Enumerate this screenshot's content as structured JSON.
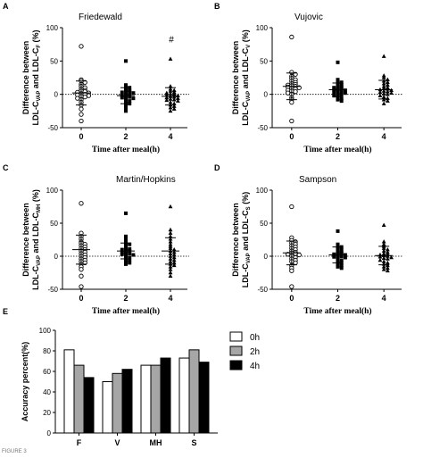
{
  "footer": "FIGURE 3",
  "chart_data": [
    {
      "type": "scatter",
      "panel_letter": "A",
      "title": "Friedewald",
      "xlabel": "Time after meal(h)",
      "ylabel_line1": "Difference between",
      "ylabel_line2": "LDL-C",
      "ylabel_sub1": "VAP",
      "ylabel_mid": " and LDL-C",
      "ylabel_sub2": "F",
      "ylabel_end": " (%)",
      "ylim": [
        -50,
        100
      ],
      "yticks": [
        "-50",
        "0",
        "50",
        "100"
      ],
      "categories": [
        "0",
        "2",
        "4"
      ],
      "annotation": "#",
      "series": [
        {
          "marker": "circle",
          "mean": 2,
          "sd": 18,
          "values": [
            72,
            22,
            20,
            18,
            15,
            12,
            10,
            8,
            6,
            5,
            4,
            3,
            2,
            1,
            0,
            -1,
            -2,
            -3,
            -4,
            -6,
            -8,
            -12,
            -16,
            -22,
            -30,
            -40
          ]
        },
        {
          "marker": "square",
          "mean": -2,
          "sd": 12,
          "values": [
            50,
            14,
            12,
            10,
            8,
            6,
            5,
            4,
            3,
            2,
            0,
            -1,
            -2,
            -3,
            -4,
            -5,
            -6,
            -8,
            -10,
            -12,
            -14,
            -17,
            -20,
            -25
          ]
        },
        {
          "marker": "triangle",
          "mean": -3,
          "sd": 13,
          "values": [
            53,
            12,
            8,
            6,
            5,
            3,
            2,
            1,
            0,
            -1,
            -2,
            -3,
            -4,
            -5,
            -6,
            -7,
            -8,
            -9,
            -10,
            -12,
            -14,
            -16,
            -18,
            -20,
            -22,
            -25
          ]
        }
      ]
    },
    {
      "type": "scatter",
      "panel_letter": "B",
      "title": "Vujovic",
      "xlabel": "Time after meal(h)",
      "ylabel_line1": "Difference between",
      "ylabel_line2": "LDL-C",
      "ylabel_sub1": "VAP",
      "ylabel_mid": " and LDL-C",
      "ylabel_sub2": "V",
      "ylabel_end": " (%)",
      "ylim": [
        -50,
        100
      ],
      "yticks": [
        "-50",
        "0",
        "50",
        "100"
      ],
      "categories": [
        "0",
        "2",
        "4"
      ],
      "series": [
        {
          "marker": "circle",
          "mean": 12,
          "sd": 20,
          "values": [
            86,
            33,
            30,
            27,
            24,
            22,
            20,
            18,
            16,
            15,
            14,
            13,
            12,
            11,
            10,
            9,
            8,
            6,
            5,
            4,
            2,
            0,
            -5,
            -8,
            -12,
            -40
          ]
        },
        {
          "marker": "square",
          "mean": 7,
          "sd": 10,
          "values": [
            48,
            22,
            20,
            18,
            16,
            14,
            12,
            11,
            10,
            9,
            8,
            7,
            6,
            5,
            4,
            3,
            2,
            1,
            0,
            -2,
            -4,
            -6,
            -8,
            -10
          ]
        },
        {
          "marker": "triangle",
          "mean": 7,
          "sd": 14,
          "values": [
            57,
            28,
            25,
            22,
            20,
            18,
            16,
            14,
            12,
            10,
            9,
            8,
            7,
            6,
            5,
            4,
            3,
            2,
            1,
            0,
            -2,
            -4,
            -6,
            -8,
            -10,
            -14
          ]
        }
      ]
    },
    {
      "type": "scatter",
      "panel_letter": "C",
      "title": "Martin/Hopkins",
      "xlabel": "Time after meal(h)",
      "ylabel_line1": "Difference between",
      "ylabel_line2": "LDL-C",
      "ylabel_sub1": "VAP",
      "ylabel_mid": " and LDL-C",
      "ylabel_sub2": "MH",
      "ylabel_end": " (%)",
      "ylim": [
        -50,
        100
      ],
      "yticks": [
        "-50",
        "0",
        "50",
        "100"
      ],
      "categories": [
        "0",
        "2",
        "4"
      ],
      "series": [
        {
          "marker": "circle",
          "mean": 10,
          "sd": 22,
          "values": [
            80,
            35,
            30,
            26,
            22,
            20,
            18,
            16,
            14,
            12,
            10,
            8,
            6,
            4,
            2,
            0,
            -2,
            -4,
            -6,
            -8,
            -10,
            -12,
            -16,
            -20,
            -30,
            -46
          ]
        },
        {
          "marker": "square",
          "mean": 8,
          "sd": 12,
          "values": [
            65,
            30,
            26,
            22,
            20,
            18,
            15,
            13,
            11,
            10,
            9,
            8,
            6,
            5,
            4,
            3,
            2,
            0,
            -2,
            -4,
            -6,
            -8,
            -10,
            -12
          ]
        },
        {
          "marker": "triangle",
          "mean": 8,
          "sd": 20,
          "values": [
            75,
            40,
            35,
            30,
            26,
            22,
            18,
            15,
            12,
            10,
            8,
            6,
            4,
            2,
            0,
            -2,
            -4,
            -6,
            -8,
            -10,
            -12,
            -14,
            -16,
            -20,
            -25,
            -30
          ]
        }
      ]
    },
    {
      "type": "scatter",
      "panel_letter": "D",
      "title": "Sampson",
      "xlabel": "Time after meal(h)",
      "ylabel_line1": "Difference between",
      "ylabel_line2": "LDL-C",
      "ylabel_sub1": "VAP",
      "ylabel_mid": " and LDL-C",
      "ylabel_sub2": "S",
      "ylabel_end": " (%)",
      "ylim": [
        -50,
        100
      ],
      "yticks": [
        "-50",
        "0",
        "50",
        "100"
      ],
      "categories": [
        "0",
        "2",
        "4"
      ],
      "series": [
        {
          "marker": "circle",
          "mean": 5,
          "sd": 18,
          "values": [
            75,
            28,
            24,
            22,
            20,
            18,
            16,
            14,
            12,
            10,
            8,
            6,
            5,
            4,
            3,
            2,
            0,
            -2,
            -4,
            -6,
            -8,
            -10,
            -14,
            -18,
            -22,
            -46
          ]
        },
        {
          "marker": "square",
          "mean": 2,
          "sd": 12,
          "values": [
            38,
            18,
            16,
            14,
            12,
            10,
            8,
            6,
            5,
            4,
            3,
            2,
            1,
            0,
            -1,
            -2,
            -4,
            -6,
            -8,
            -10,
            -12,
            -14,
            -16,
            -18
          ]
        },
        {
          "marker": "triangle",
          "mean": 1,
          "sd": 14,
          "values": [
            47,
            22,
            18,
            15,
            12,
            10,
            8,
            6,
            4,
            3,
            2,
            1,
            0,
            -1,
            -2,
            -3,
            -4,
            -6,
            -8,
            -10,
            -12,
            -14,
            -16,
            -18,
            -20,
            -22
          ]
        }
      ]
    },
    {
      "type": "bar",
      "panel_letter": "E",
      "ylabel": "Accuracy percent(%)",
      "ylim": [
        0,
        100
      ],
      "yticks": [
        "0",
        "20",
        "40",
        "60",
        "80",
        "100"
      ],
      "categories": [
        "F",
        "V",
        "MH",
        "S"
      ],
      "legend_position": "right",
      "series": [
        {
          "name": "0h",
          "color": "#ffffff",
          "values": [
            81,
            50,
            66,
            73
          ]
        },
        {
          "name": "2h",
          "color": "#a6a6a6",
          "values": [
            66,
            58,
            66,
            81
          ]
        },
        {
          "name": "4h",
          "color": "#000000",
          "values": [
            54,
            62,
            73,
            69
          ]
        }
      ]
    }
  ]
}
